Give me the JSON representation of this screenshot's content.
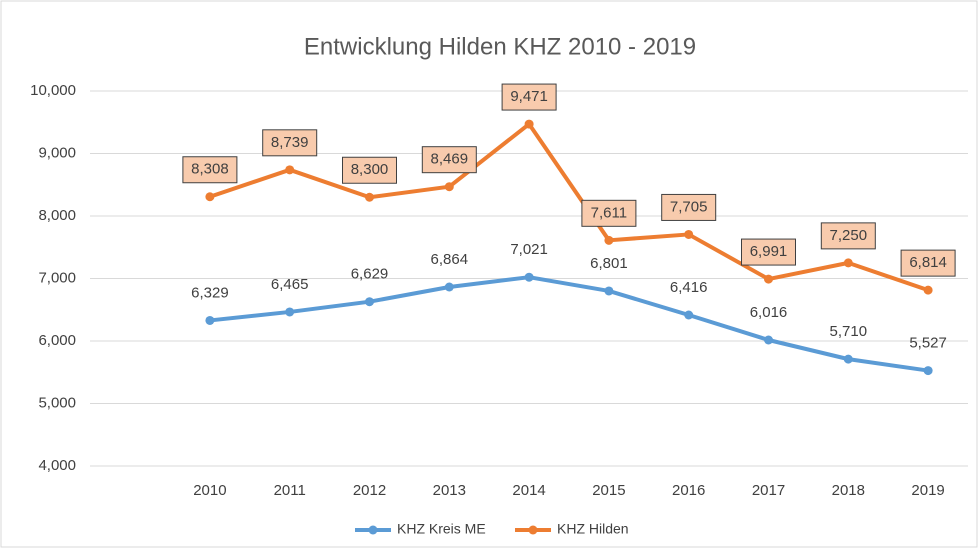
{
  "chart_data": {
    "type": "line",
    "title": "Entwicklung Hilden KHZ 2010 - 2019",
    "categories": [
      "2010",
      "2011",
      "2012",
      "2013",
      "2014",
      "2015",
      "2016",
      "2017",
      "2018",
      "2019"
    ],
    "series": [
      {
        "name": "KHZ Kreis ME",
        "color": "#5b9bd5",
        "values": [
          6329,
          6465,
          6629,
          6864,
          7021,
          6801,
          6416,
          6016,
          5710,
          5527
        ],
        "value_labels": [
          "6,329",
          "6,465",
          "6,629",
          "6,864",
          "7,021",
          "6,801",
          "6,416",
          "6,016",
          "5,710",
          "5,527"
        ]
      },
      {
        "name": "KHZ Hilden",
        "color": "#ed7d31",
        "values": [
          8308,
          8739,
          8300,
          8469,
          9471,
          7611,
          7705,
          6991,
          7250,
          6814
        ],
        "value_labels": [
          "8,308",
          "8,739",
          "8,300",
          "8,469",
          "9,471",
          "7,611",
          "7,705",
          "6,991",
          "7,250",
          "6,814"
        ]
      }
    ],
    "ylim": [
      4000,
      10000
    ],
    "yticks": [
      {
        "value": 4000,
        "label": "4,000"
      },
      {
        "value": 5000,
        "label": "5,000"
      },
      {
        "value": 6000,
        "label": "6,000"
      },
      {
        "value": 7000,
        "label": "7,000"
      },
      {
        "value": 8000,
        "label": "8,000"
      },
      {
        "value": 9000,
        "label": "9,000"
      },
      {
        "value": 10000,
        "label": "10,000"
      }
    ],
    "grid": true,
    "legend": "bottom"
  }
}
